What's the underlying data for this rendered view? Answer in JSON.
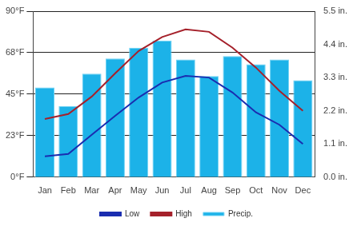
{
  "chart_data": {
    "type": "bar",
    "categories": [
      "Jan",
      "Feb",
      "Mar",
      "Apr",
      "May",
      "Jun",
      "Jul",
      "Aug",
      "Sep",
      "Oct",
      "Nov",
      "Dec"
    ],
    "series": [
      {
        "name": "Low",
        "type": "line",
        "color": "#1a2db0",
        "values": [
          11.3,
          12.6,
          23,
          33.3,
          43.2,
          51.3,
          54.9,
          54,
          45.9,
          35.1,
          28.4,
          18
        ]
      },
      {
        "name": "High",
        "type": "line",
        "color": "#a5212b",
        "values": [
          31.5,
          34.2,
          43.7,
          56.3,
          68.4,
          76,
          80.1,
          78.8,
          70.2,
          59.4,
          46.8,
          36
        ]
      },
      {
        "name": "Precip.",
        "type": "bar",
        "axis": "y2",
        "color": "#1cb2e8",
        "values": [
          2.97,
          2.36,
          3.43,
          3.93,
          4.29,
          4.53,
          3.9,
          3.35,
          4.01,
          3.74,
          3.9,
          3.21
        ]
      }
    ],
    "ylim": [
      0,
      90
    ],
    "yticks": [
      {
        "value": 0,
        "label": "0°F"
      },
      {
        "value": 22.5,
        "label": "23°F"
      },
      {
        "value": 45,
        "label": "45°F"
      },
      {
        "value": 67.5,
        "label": "68°F"
      },
      {
        "value": 90,
        "label": "90°F"
      }
    ],
    "y2lim": [
      0,
      5.5
    ],
    "y2ticks": [
      {
        "value": 0,
        "label": "0.0 in."
      },
      {
        "value": 1.1,
        "label": "1.1 in."
      },
      {
        "value": 2.2,
        "label": "2.2 in."
      },
      {
        "value": 3.3,
        "label": "3.3 in."
      },
      {
        "value": 4.4,
        "label": "4.4 in."
      },
      {
        "value": 5.5,
        "label": "5.5 in."
      }
    ],
    "grid": true,
    "legend": "bottom"
  }
}
